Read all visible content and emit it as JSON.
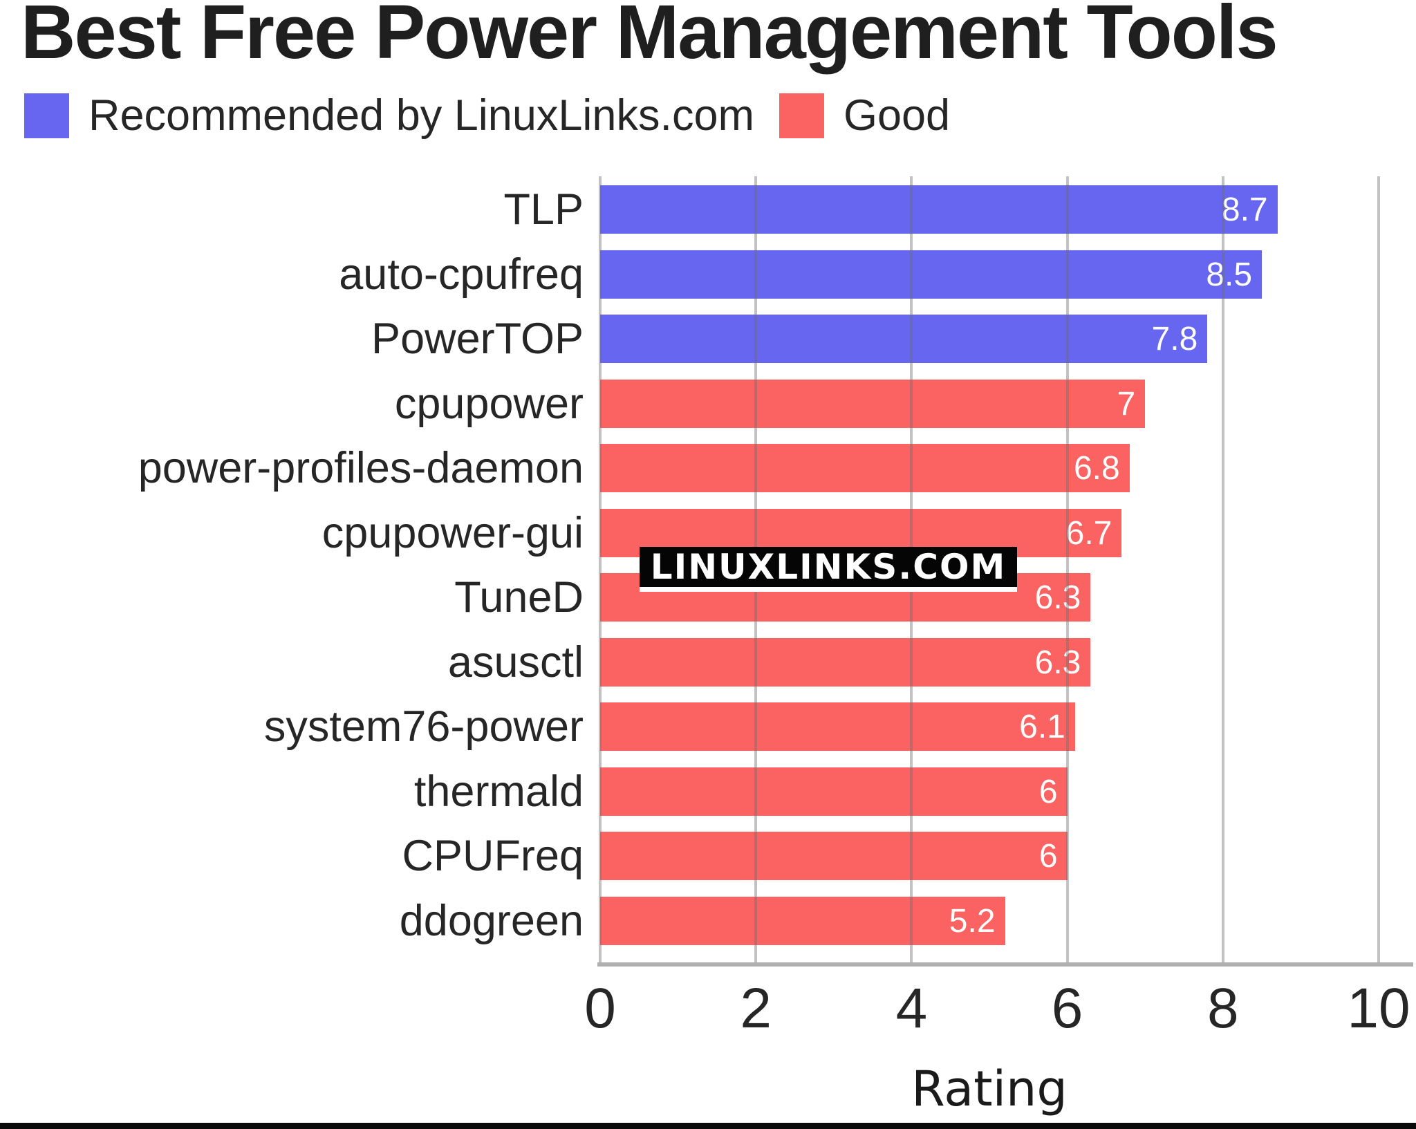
{
  "title": "Best Free Power Management Tools",
  "legend": {
    "items": [
      {
        "label": "Recommended by LinuxLinks.com",
        "group": "recommended",
        "color": "#6666f0"
      },
      {
        "label": "Good",
        "group": "good",
        "color": "#fb6363"
      }
    ]
  },
  "watermark": "LINUXLINKS.COM",
  "chart_data": {
    "type": "bar",
    "orientation": "horizontal",
    "title": "Best Free Power Management Tools",
    "xlabel": "Rating",
    "xlim": [
      0,
      10
    ],
    "xticks": [
      0,
      2,
      4,
      6,
      8,
      10
    ],
    "xtick_labels": [
      "0",
      "2",
      "4",
      "6",
      "8",
      "10"
    ],
    "grid": true,
    "legend_position": "top",
    "categories": [
      "TLP",
      "auto-cpufreq",
      "PowerTOP",
      "cpupower",
      "power-profiles-daemon",
      "cpupower-gui",
      "TuneD",
      "asusctl",
      "system76-power",
      "thermald",
      "CPUFreq",
      "ddogreen"
    ],
    "values": [
      8.7,
      8.5,
      7.8,
      7,
      6.8,
      6.7,
      6.3,
      6.3,
      6.1,
      6,
      6,
      5.2
    ],
    "value_labels": [
      "8.7",
      "8.5",
      "7.8",
      "7",
      "6.8",
      "6.7",
      "6.3",
      "6.3",
      "6.1",
      "6",
      "6",
      "5.2"
    ],
    "groups": [
      "recommended",
      "recommended",
      "recommended",
      "good",
      "good",
      "good",
      "good",
      "good",
      "good",
      "good",
      "good",
      "good"
    ],
    "colors": {
      "recommended": "#6666f0",
      "good": "#fb6363"
    }
  }
}
